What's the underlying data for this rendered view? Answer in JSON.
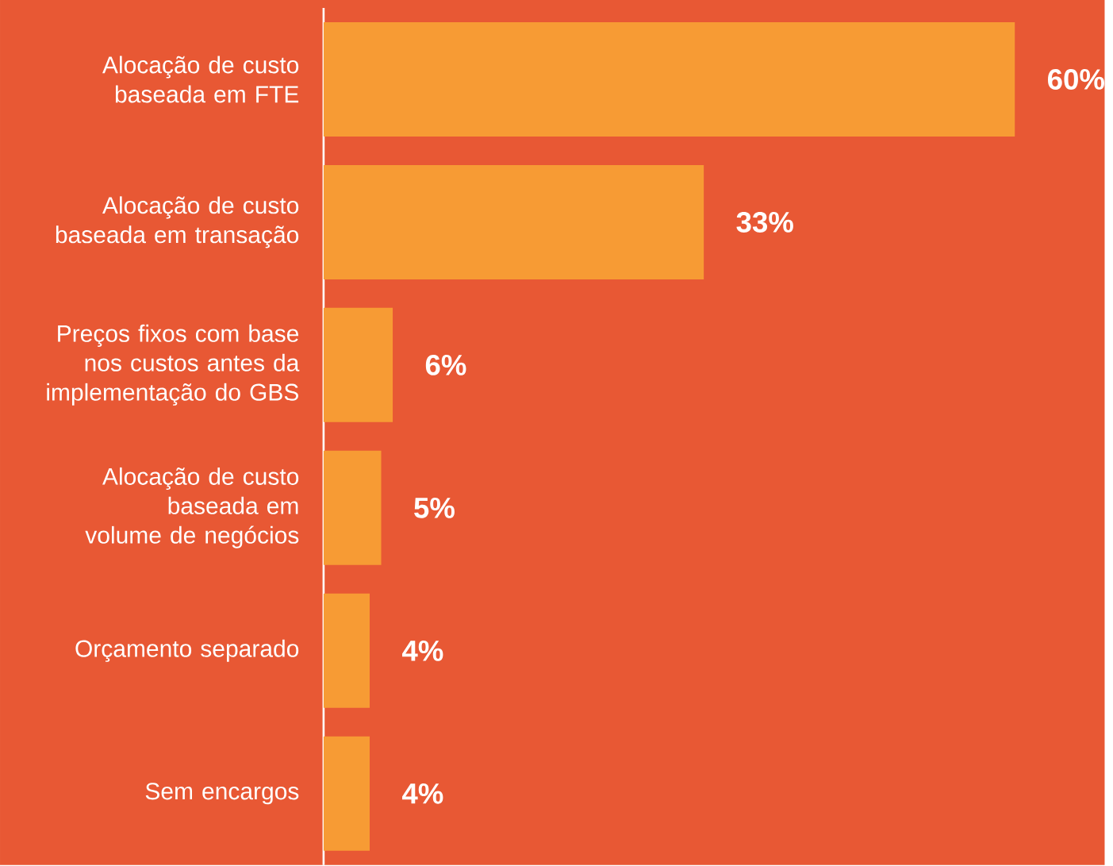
{
  "chart_data": {
    "type": "bar",
    "orientation": "horizontal",
    "categories": [
      "Alocação de custo baseada em FTE",
      "Alocação de custo baseada em transação",
      "Preços fixos com base nos custos antes da implementação do GBS",
      "Alocação de custo baseada em volume de negócios",
      "Orçamento separado",
      "Sem encargos"
    ],
    "values": [
      60,
      33,
      6,
      5,
      4,
      4
    ],
    "value_labels": [
      "60%",
      "33%",
      "6%",
      "5%",
      "4%",
      "4%"
    ],
    "color": "#f79b34"
  }
}
